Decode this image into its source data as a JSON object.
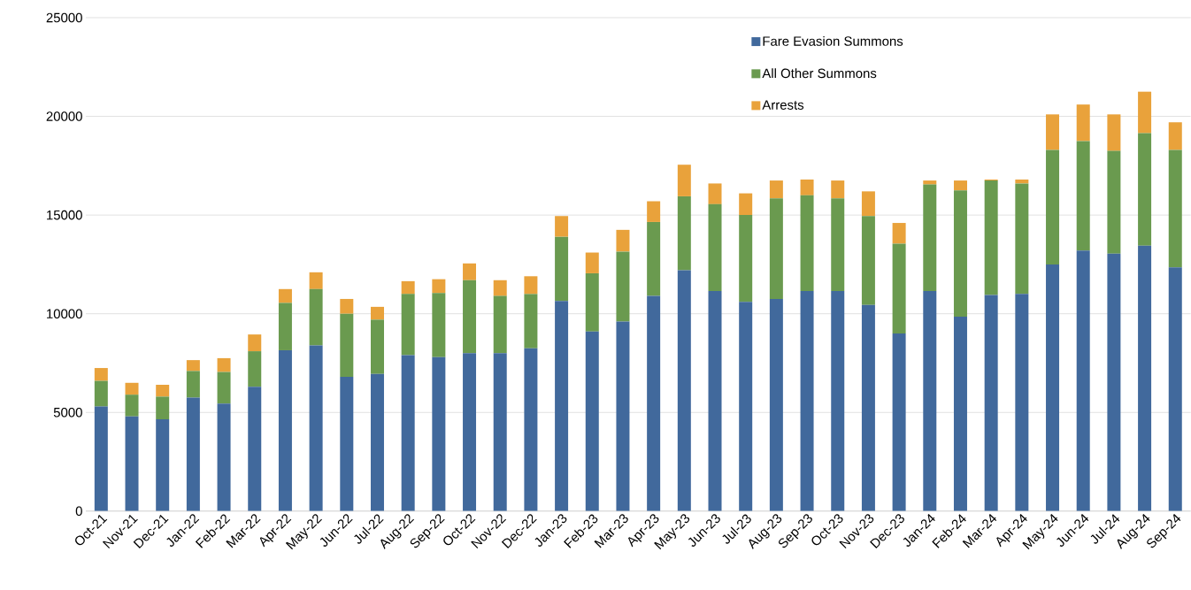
{
  "chart_data": {
    "type": "bar",
    "stacked": true,
    "categories": [
      "Oct-21",
      "Nov-21",
      "Dec-21",
      "Jan-22",
      "Feb-22",
      "Mar-22",
      "Apr-22",
      "May-22",
      "Jun-22",
      "Jul-22",
      "Aug-22",
      "Sep-22",
      "Oct-22",
      "Nov-22",
      "Dec-22",
      "Jan-23",
      "Feb-23",
      "Mar-23",
      "Apr-23",
      "May-23",
      "Jun-23",
      "Jul-23",
      "Aug-23",
      "Sep-23",
      "Oct-23",
      "Nov-23",
      "Dec-23",
      "Jan-24",
      "Feb-24",
      "Mar-24",
      "Apr-24",
      "May-24",
      "Jun-24",
      "Jul-24",
      "Aug-24",
      "Sep-24"
    ],
    "series": [
      {
        "name": "Fare Evasion Summons",
        "color": "#41699c",
        "values": [
          5300,
          4800,
          4650,
          5750,
          5450,
          6300,
          8150,
          8400,
          6800,
          6950,
          7900,
          7800,
          8000,
          8000,
          8250,
          10650,
          9100,
          9600,
          10900,
          12200,
          11150,
          10600,
          10750,
          11150,
          11150,
          10450,
          9000,
          11150,
          9850,
          10950,
          11000,
          12500,
          13200,
          13050,
          13450,
          12350
        ]
      },
      {
        "name": "All Other Summons",
        "color": "#6a9a4f",
        "values": [
          1300,
          1100,
          1150,
          1350,
          1600,
          1800,
          2400,
          2850,
          3200,
          2750,
          3100,
          3250,
          3700,
          2900,
          2750,
          3250,
          2950,
          3550,
          3750,
          3750,
          4400,
          4400,
          5100,
          4850,
          4700,
          4500,
          4550,
          5400,
          6400,
          5800,
          5600,
          5800,
          5550,
          5200,
          5700,
          5950
        ]
      },
      {
        "name": "Arrests",
        "color": "#e9a23b",
        "values": [
          650,
          600,
          600,
          550,
          700,
          850,
          700,
          850,
          750,
          650,
          650,
          700,
          850,
          800,
          900,
          1050,
          1050,
          1100,
          1050,
          1600,
          1050,
          1100,
          900,
          800,
          900,
          1250,
          1050,
          200,
          500,
          50,
          200,
          1800,
          1850,
          1850,
          2100,
          1400
        ]
      }
    ],
    "ylim": [
      0,
      25000
    ],
    "yticks": [
      0,
      5000,
      10000,
      15000,
      20000,
      25000
    ],
    "grid": "y",
    "legend": "top right"
  }
}
